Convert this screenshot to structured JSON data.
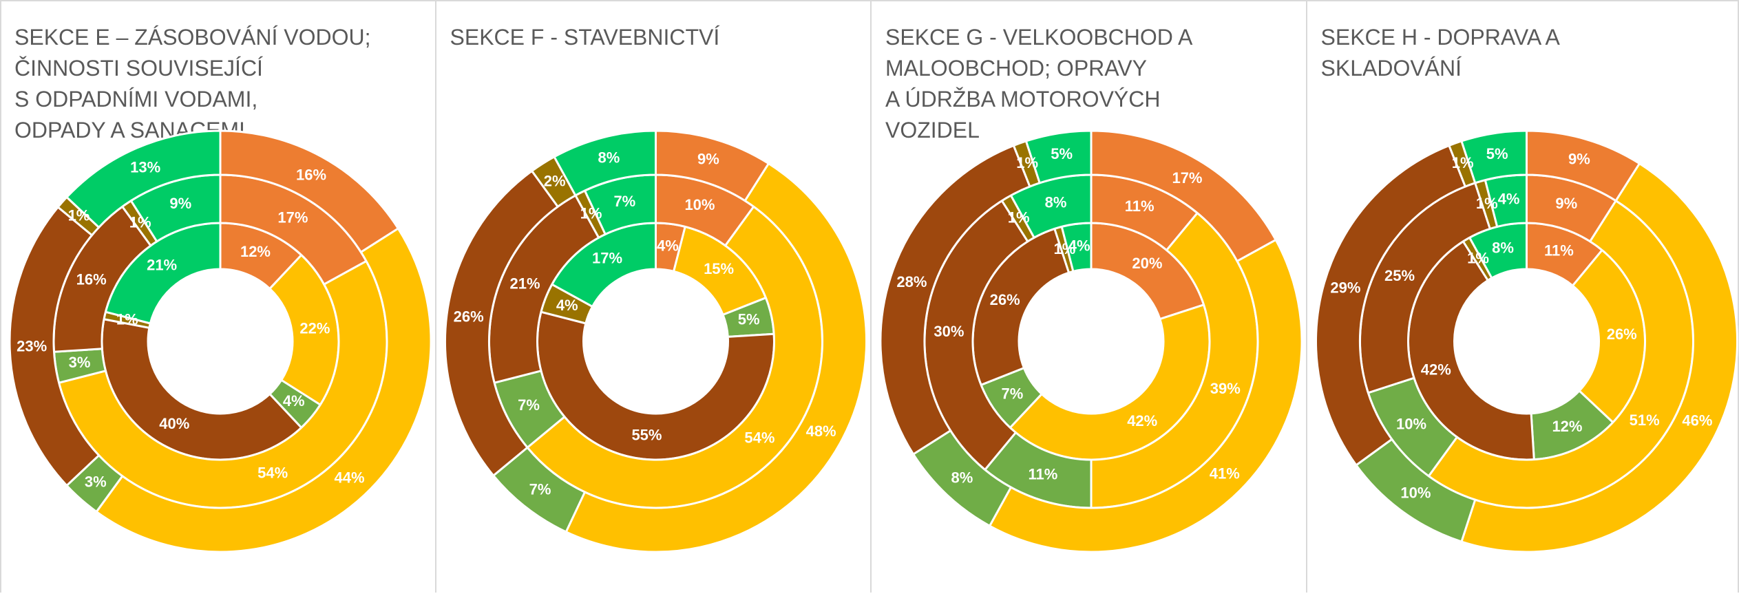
{
  "chart_data": [
    {
      "type": "multi-donut",
      "title_lines": [
        "SEKCE E – ZÁSOBOVÁNÍ VODOU;",
        "ČINNOSTI SOUVISEJÍCÍ",
        "S ODPADNÍMI VODAMI,",
        "ODPADY A SANACEMI"
      ],
      "colors": [
        "#ED7D31",
        "#FFC000",
        "#70AD47",
        "#9E480E",
        "#997300",
        "#00CC66"
      ],
      "series": [
        {
          "values": [
            12,
            22,
            4,
            40,
            1,
            21
          ],
          "value_labels": [
            "12%",
            "22%",
            "4%",
            "40%",
            "1%",
            "21%"
          ]
        },
        {
          "values": [
            17,
            54,
            3,
            16,
            1,
            9
          ],
          "value_labels": [
            "17%",
            "54%",
            "3%",
            "16%",
            "1%",
            "9%"
          ]
        },
        {
          "values": [
            16,
            44,
            3,
            23,
            1,
            13
          ],
          "value_labels": [
            "16%",
            "44%",
            "3%",
            "23%",
            "1%",
            "13%"
          ]
        }
      ]
    },
    {
      "type": "multi-donut",
      "title_lines": [
        "SEKCE F - STAVEBNICTVÍ"
      ],
      "colors": [
        "#ED7D31",
        "#FFC000",
        "#70AD47",
        "#9E480E",
        "#997300",
        "#00CC66"
      ],
      "series": [
        {
          "values": [
            4,
            15,
            5,
            55,
            4,
            17
          ],
          "value_labels": [
            "4%",
            "15%",
            "5%",
            "55%",
            "4%",
            "17%"
          ]
        },
        {
          "values": [
            10,
            54,
            7,
            21,
            1,
            7
          ],
          "value_labels": [
            "10%",
            "54%",
            "7%",
            "21%",
            "1%",
            "7%"
          ]
        },
        {
          "values": [
            9,
            48,
            7,
            26,
            2,
            8
          ],
          "value_labels": [
            "9%",
            "48%",
            "7%",
            "26%",
            "2%",
            "8%"
          ]
        }
      ]
    },
    {
      "type": "multi-donut",
      "title_lines": [
        "SEKCE G - VELKOOBCHOD A",
        "MALOOBCHOD; OPRAVY",
        "A ÚDRŽBA MOTOROVÝCH",
        "VOZIDEL"
      ],
      "colors": [
        "#ED7D31",
        "#FFC000",
        "#70AD47",
        "#9E480E",
        "#997300",
        "#00CC66"
      ],
      "series": [
        {
          "values": [
            20,
            42,
            7,
            26,
            1,
            4
          ],
          "value_labels": [
            "20%",
            "42%",
            "7%",
            "26%",
            "1%",
            "4%"
          ]
        },
        {
          "values": [
            11,
            39,
            11,
            30,
            1,
            8
          ],
          "value_labels": [
            "11%",
            "39%",
            "11%",
            "30%",
            "1%",
            "8%"
          ]
        },
        {
          "values": [
            17,
            41,
            8,
            28,
            1,
            5
          ],
          "value_labels": [
            "17%",
            "41%",
            "8%",
            "28%",
            "1%",
            "5%"
          ]
        }
      ]
    },
    {
      "type": "multi-donut",
      "title_lines": [
        "SEKCE H - DOPRAVA A",
        "SKLADOVÁNÍ"
      ],
      "colors": [
        "#ED7D31",
        "#FFC000",
        "#70AD47",
        "#9E480E",
        "#997300",
        "#00CC66"
      ],
      "series": [
        {
          "values": [
            11,
            26,
            12,
            42,
            1,
            8
          ],
          "value_labels": [
            "11%",
            "26%",
            "12%",
            "42%",
            "1%",
            "8%"
          ]
        },
        {
          "values": [
            9,
            51,
            10,
            25,
            1,
            4
          ],
          "value_labels": [
            "9%",
            "51%",
            "10%",
            "25%",
            "1%",
            "4%"
          ]
        },
        {
          "values": [
            9,
            46,
            10,
            29,
            1,
            5
          ],
          "value_labels": [
            "9%",
            "46%",
            "10%",
            "29%",
            "1%",
            "5%"
          ]
        }
      ]
    }
  ]
}
